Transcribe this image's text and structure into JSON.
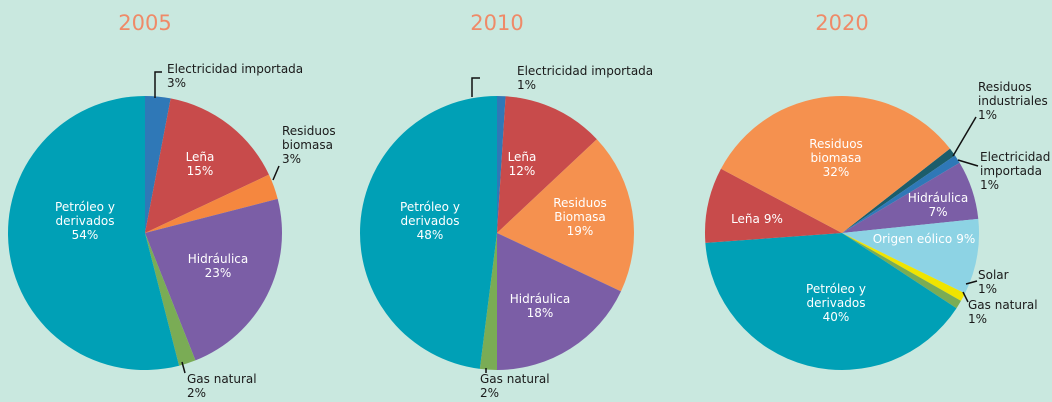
{
  "chart_data": [
    {
      "type": "pie",
      "title": "2005",
      "startangle": 0,
      "categories": [
        "Electricidad importada",
        "Leña",
        "Residuos biomasa",
        "Hidráulica",
        "Gas natural",
        "Petróleo y derivados"
      ],
      "values": [
        3,
        15,
        3,
        23,
        2,
        54
      ],
      "value_labels": [
        "3%",
        "15%",
        "3%",
        "23%",
        "2%",
        "54%"
      ],
      "colors": [
        "#2f78b7",
        "#c84b4b",
        "#f5873f",
        "#7b5ea6",
        "#7aac55",
        "#00a0b6"
      ]
    },
    {
      "type": "pie",
      "title": "2010",
      "startangle": 0,
      "categories": [
        "Electricidad importada",
        "Leña",
        "Residuos Biomasa",
        "Hidráulica",
        "Gas natural",
        "Petróleo y derivados"
      ],
      "values": [
        1,
        12,
        19,
        18,
        2,
        48
      ],
      "value_labels": [
        "1%",
        "12%",
        "19%",
        "18%",
        "2%",
        "48%"
      ],
      "colors": [
        "#2f78b7",
        "#c84b4b",
        "#f5914f",
        "#7b5ea6",
        "#7aac55",
        "#00a0b6"
      ]
    },
    {
      "type": "pie",
      "title": "2020",
      "startangle": 52,
      "categories": [
        "Residuos industriales",
        "Electricidad importada",
        "Hidráulica",
        "Origen eólico",
        "Solar",
        "Gas natural",
        "Petróleo y derivados",
        "Leña",
        "Residuos biomasa"
      ],
      "values": [
        1,
        1,
        7,
        9,
        1,
        1,
        40,
        9,
        32
      ],
      "value_labels": [
        "1%",
        "1%",
        "7%",
        "9%",
        "1%",
        "1%",
        "40%",
        "9%",
        "32%"
      ],
      "colors": [
        "#1c5d6b",
        "#2f78b7",
        "#7b5ea6",
        "#8dd3e4",
        "#f0e400",
        "#7aac55",
        "#00a0b6",
        "#c84b4b",
        "#f5914f"
      ]
    }
  ]
}
